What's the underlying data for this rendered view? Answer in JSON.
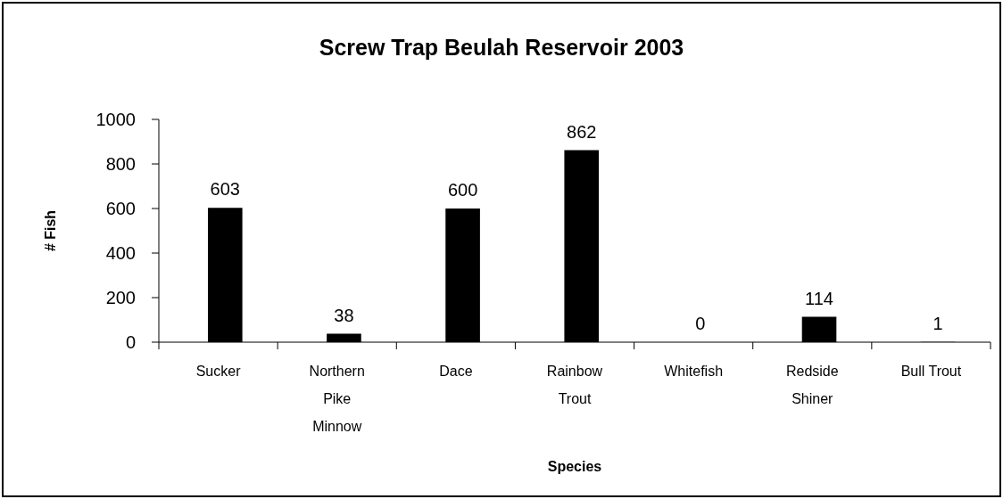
{
  "chart_data": {
    "type": "bar",
    "title": "Screw Trap Beulah Reservoir 2003",
    "xlabel": "Species",
    "ylabel": "# Fish",
    "categories": [
      "Sucker",
      "Northern Pike Minnow",
      "Dace",
      "Rainbow Trout",
      "Whitefish",
      "Redside Shiner",
      "Bull Trout"
    ],
    "values": [
      603,
      38,
      600,
      862,
      0,
      114,
      1
    ],
    "color": "#000000",
    "ylim": [
      0,
      1000
    ],
    "yticks": [
      0,
      200,
      400,
      600,
      800,
      1000
    ],
    "data_labels": true
  }
}
